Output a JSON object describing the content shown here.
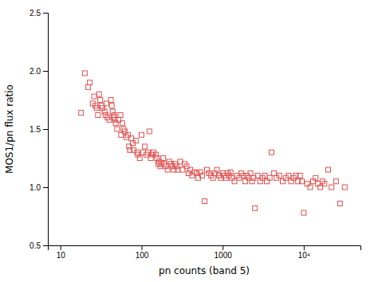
{
  "chart_data": {
    "type": "scatter",
    "xlabel": "pn counts (band 5)",
    "ylabel": "MOS1/pn  flux ratio",
    "log": "x",
    "xlim": [
      7,
      50000
    ],
    "ylim": [
      0.5,
      2.5
    ],
    "xticks": [
      10,
      100,
      1000,
      {
        "value": 10000,
        "label": "10⁴"
      }
    ],
    "yticks": [
      0.5,
      {
        "value": 1.0,
        "label": "1.0"
      },
      1.5,
      {
        "value": 2.0,
        "label": "2.0"
      },
      2.5
    ],
    "color": "#e05050",
    "marker": "square",
    "x": [
      18,
      20,
      22,
      23,
      25,
      26,
      27,
      28,
      29,
      30,
      31,
      32,
      33,
      35,
      36,
      37,
      38,
      40,
      42,
      43,
      44,
      45,
      46,
      47,
      48,
      50,
      52,
      55,
      56,
      58,
      60,
      62,
      65,
      68,
      70,
      72,
      75,
      78,
      80,
      85,
      88,
      90,
      95,
      100,
      105,
      110,
      115,
      120,
      125,
      130,
      135,
      140,
      150,
      155,
      160,
      165,
      170,
      175,
      185,
      190,
      200,
      210,
      220,
      230,
      240,
      250,
      260,
      270,
      280,
      300,
      320,
      340,
      360,
      380,
      400,
      420,
      450,
      480,
      500,
      530,
      560,
      600,
      640,
      680,
      720,
      760,
      800,
      850,
      900,
      950,
      1000,
      1050,
      1100,
      1150,
      1200,
      1250,
      1300,
      1400,
      1500,
      1600,
      1700,
      1800,
      1900,
      2000,
      2100,
      2200,
      2300,
      2400,
      2500,
      2700,
      2900,
      3100,
      3300,
      3500,
      3800,
      4000,
      4300,
      4600,
      5000,
      5500,
      6000,
      6500,
      7000,
      7500,
      8000,
      8500,
      9000,
      9500,
      10000,
      11000,
      12000,
      13000,
      14000,
      15000,
      16000,
      17000,
      18000,
      20000,
      22000,
      25000,
      28000,
      32000
    ],
    "values": [
      1.64,
      1.98,
      1.86,
      1.9,
      1.72,
      1.78,
      1.7,
      1.68,
      1.62,
      1.8,
      1.75,
      1.7,
      1.68,
      1.65,
      1.62,
      1.72,
      1.6,
      1.58,
      1.75,
      1.7,
      1.65,
      1.6,
      1.62,
      1.58,
      1.55,
      1.5,
      1.58,
      1.62,
      1.45,
      1.55,
      1.5,
      1.48,
      1.43,
      1.45,
      1.35,
      1.32,
      1.42,
      1.38,
      1.32,
      1.4,
      1.3,
      1.28,
      1.25,
      1.45,
      1.3,
      1.35,
      1.28,
      1.3,
      1.48,
      1.25,
      1.28,
      1.3,
      1.28,
      1.25,
      1.2,
      1.22,
      1.18,
      1.2,
      1.25,
      1.2,
      1.18,
      1.15,
      1.22,
      1.2,
      1.18,
      1.15,
      1.2,
      1.18,
      1.15,
      1.22,
      1.15,
      1.2,
      1.18,
      1.12,
      1.15,
      1.1,
      1.13,
      1.12,
      1.08,
      1.13,
      1.1,
      0.88,
      1.15,
      1.12,
      1.1,
      1.08,
      1.12,
      1.15,
      1.1,
      1.08,
      1.12,
      1.1,
      1.08,
      1.12,
      1.1,
      1.13,
      1.08,
      1.05,
      1.1,
      1.08,
      1.12,
      1.1,
      1.05,
      1.1,
      1.08,
      1.12,
      1.05,
      1.08,
      0.82,
      1.1,
      1.05,
      1.08,
      1.1,
      1.05,
      1.08,
      1.3,
      1.12,
      1.08,
      1.1,
      1.05,
      1.08,
      1.1,
      1.05,
      1.08,
      1.1,
      1.05,
      1.1,
      1.05,
      0.78,
      1.03,
      1.0,
      1.05,
      1.08,
      1.03,
      1.0,
      1.05,
      1.03,
      1.15,
      1.0,
      1.05,
      0.86,
      1.0
    ]
  }
}
